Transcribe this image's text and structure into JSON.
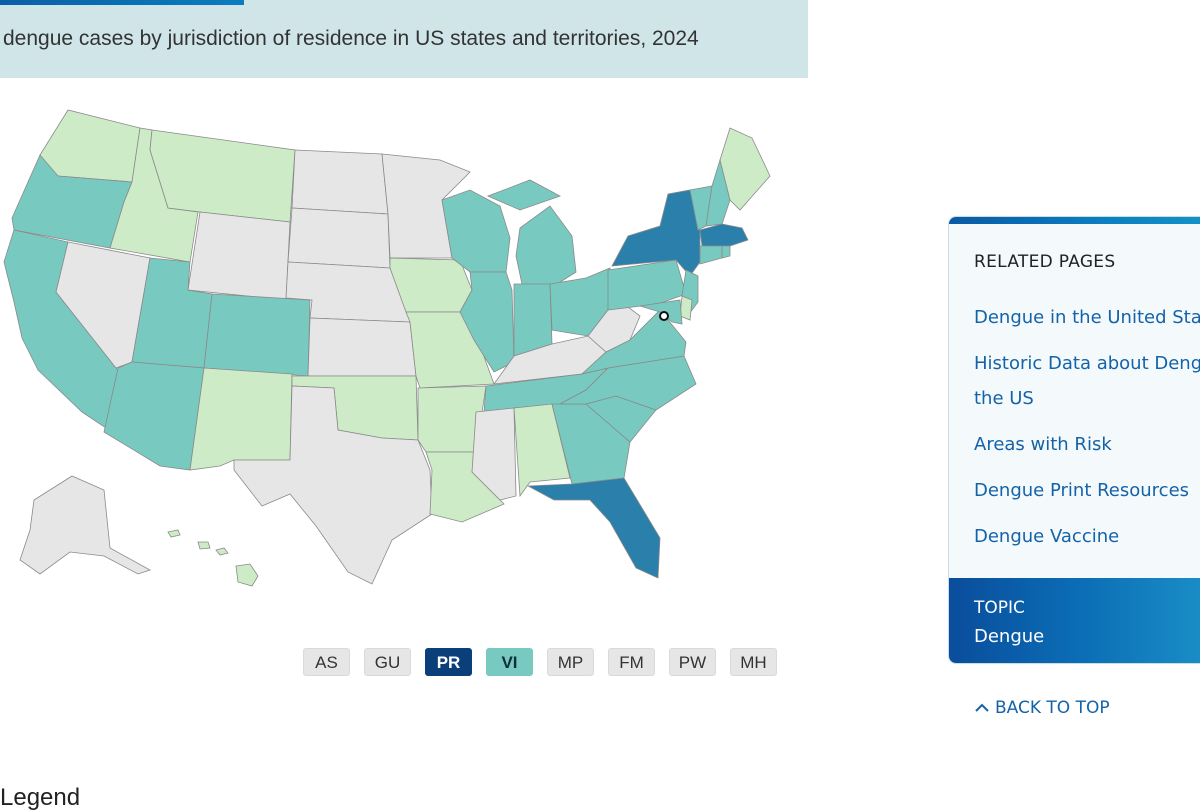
{
  "map": {
    "title": "dengue cases by jurisdiction of residence in US states and territories, 2024",
    "colors": {
      "none": "#e6e6e6",
      "light": "#cdebc6",
      "medium": "#78cac0",
      "high": "#2b7fab",
      "very_high": "#0b3f7a"
    },
    "states": [
      {
        "id": "WA",
        "level": "light"
      },
      {
        "id": "OR",
        "level": "medium"
      },
      {
        "id": "CA",
        "level": "medium"
      },
      {
        "id": "ID",
        "level": "light"
      },
      {
        "id": "MT",
        "level": "light"
      },
      {
        "id": "WY",
        "level": "none"
      },
      {
        "id": "NV",
        "level": "none"
      },
      {
        "id": "UT",
        "level": "medium"
      },
      {
        "id": "CO",
        "level": "medium"
      },
      {
        "id": "AZ",
        "level": "medium"
      },
      {
        "id": "NM",
        "level": "light"
      },
      {
        "id": "ND",
        "level": "none"
      },
      {
        "id": "SD",
        "level": "none"
      },
      {
        "id": "NE",
        "level": "none"
      },
      {
        "id": "KS",
        "level": "none"
      },
      {
        "id": "OK",
        "level": "light"
      },
      {
        "id": "TX",
        "level": "none"
      },
      {
        "id": "MN",
        "level": "none"
      },
      {
        "id": "IA",
        "level": "light"
      },
      {
        "id": "MO",
        "level": "light"
      },
      {
        "id": "AR",
        "level": "light"
      },
      {
        "id": "LA",
        "level": "light"
      },
      {
        "id": "WI",
        "level": "medium"
      },
      {
        "id": "IL",
        "level": "medium"
      },
      {
        "id": "MI",
        "level": "medium"
      },
      {
        "id": "IN",
        "level": "medium"
      },
      {
        "id": "OH",
        "level": "medium"
      },
      {
        "id": "KY",
        "level": "none"
      },
      {
        "id": "TN",
        "level": "medium"
      },
      {
        "id": "MS",
        "level": "none"
      },
      {
        "id": "AL",
        "level": "light"
      },
      {
        "id": "GA",
        "level": "medium"
      },
      {
        "id": "FL",
        "level": "high"
      },
      {
        "id": "SC",
        "level": "medium"
      },
      {
        "id": "NC",
        "level": "medium"
      },
      {
        "id": "VA",
        "level": "medium"
      },
      {
        "id": "WV",
        "level": "none"
      },
      {
        "id": "PA",
        "level": "medium"
      },
      {
        "id": "NY",
        "level": "high"
      },
      {
        "id": "VT",
        "level": "medium"
      },
      {
        "id": "NH",
        "level": "medium"
      },
      {
        "id": "ME",
        "level": "light"
      },
      {
        "id": "MA",
        "level": "high"
      },
      {
        "id": "CT",
        "level": "medium"
      },
      {
        "id": "RI",
        "level": "medium"
      },
      {
        "id": "NJ",
        "level": "medium"
      },
      {
        "id": "DE",
        "level": "light"
      },
      {
        "id": "MD",
        "level": "medium"
      },
      {
        "id": "AK",
        "level": "none"
      },
      {
        "id": "HI",
        "level": "light"
      }
    ],
    "territories": [
      {
        "code": "AS",
        "level": "none"
      },
      {
        "code": "GU",
        "level": "none"
      },
      {
        "code": "PR",
        "level": "very_high"
      },
      {
        "code": "VI",
        "level": "medium"
      },
      {
        "code": "MP",
        "level": "none"
      },
      {
        "code": "FM",
        "level": "none"
      },
      {
        "code": "PW",
        "level": "none"
      },
      {
        "code": "MH",
        "level": "none"
      }
    ]
  },
  "related": {
    "heading": "RELATED PAGES",
    "links": [
      "Dengue in the United States",
      "Historic Data about Dengue in",
      "the US",
      "Areas with Risk",
      "Dengue Print Resources",
      "Dengue Vaccine"
    ],
    "topic_label": "TOPIC",
    "topic_value": "Dengue"
  },
  "back_to_top": "BACK TO TOP",
  "legend_heading": "Legend"
}
